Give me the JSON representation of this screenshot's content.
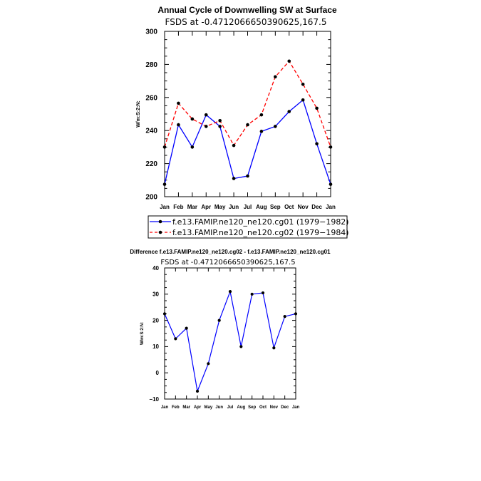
{
  "chart_data": [
    {
      "type": "line",
      "title": "Annual Cycle of Downwelling SW at Surface",
      "subtitle": "FSDS at -0.4712066650390625,167.5",
      "ylabel": "W/m:S:2:N:",
      "xlabel": "",
      "ylim": [
        200,
        300
      ],
      "yticks": [
        "200",
        "220",
        "240",
        "260",
        "280",
        "300"
      ],
      "ytick_values": [
        200,
        220,
        240,
        260,
        280,
        300
      ],
      "categories": [
        "Jan",
        "Feb",
        "Mar",
        "Apr",
        "May",
        "Jun",
        "Jul",
        "Aug",
        "Sep",
        "Oct",
        "Nov",
        "Dec",
        "Jan"
      ],
      "series": [
        {
          "name": "f.e13.FAMIP.ne120_ne120.cg01 (1979-1982)",
          "color": "#0000ff",
          "dash": "solid",
          "values": [
            207.5,
            243.5,
            230.0,
            249.5,
            242.5,
            211.0,
            212.5,
            239.5,
            242.5,
            251.5,
            258.5,
            232.0,
            207.5
          ]
        },
        {
          "name": "f.e13.FAMIP.ne120_ne120.cg02 (1979-1984)",
          "color": "#ff0000",
          "dash": "dashed",
          "values": [
            230.0,
            256.5,
            247.0,
            242.5,
            246.0,
            231.0,
            243.5,
            249.5,
            272.5,
            282.0,
            268.0,
            253.5,
            230.0
          ]
        }
      ],
      "legend_labels": [
        "f.e13.FAMIP.ne120_ne120.cg01 (1979−1982)",
        "f.e13.FAMIP.ne120_ne120.cg02 (1979−1984)"
      ]
    },
    {
      "type": "line",
      "title": "Difference f.e13.FAMIP.ne120_ne120.cg02 - f.e13.FAMIP.ne120_ne120.cg01",
      "subtitle": "FSDS at -0.4712066650390625,167.5",
      "ylabel": "W/m:S:2:N:",
      "xlabel": "",
      "ylim": [
        -10,
        40
      ],
      "yticks": [
        "−10",
        "0",
        "10",
        "20",
        "30",
        "40"
      ],
      "ytick_values": [
        -10,
        0,
        10,
        20,
        30,
        40
      ],
      "categories": [
        "Jan",
        "Feb",
        "Mar",
        "Apr",
        "May",
        "Jun",
        "Jul",
        "Aug",
        "Sep",
        "Oct",
        "Nov",
        "Dec",
        "Jan"
      ],
      "series": [
        {
          "name": "difference",
          "color": "#0000ff",
          "dash": "solid",
          "values": [
            22.5,
            13.0,
            17.0,
            -7.0,
            3.5,
            20.0,
            31.0,
            10.0,
            30.0,
            30.5,
            9.5,
            21.5,
            22.5
          ]
        }
      ]
    }
  ]
}
